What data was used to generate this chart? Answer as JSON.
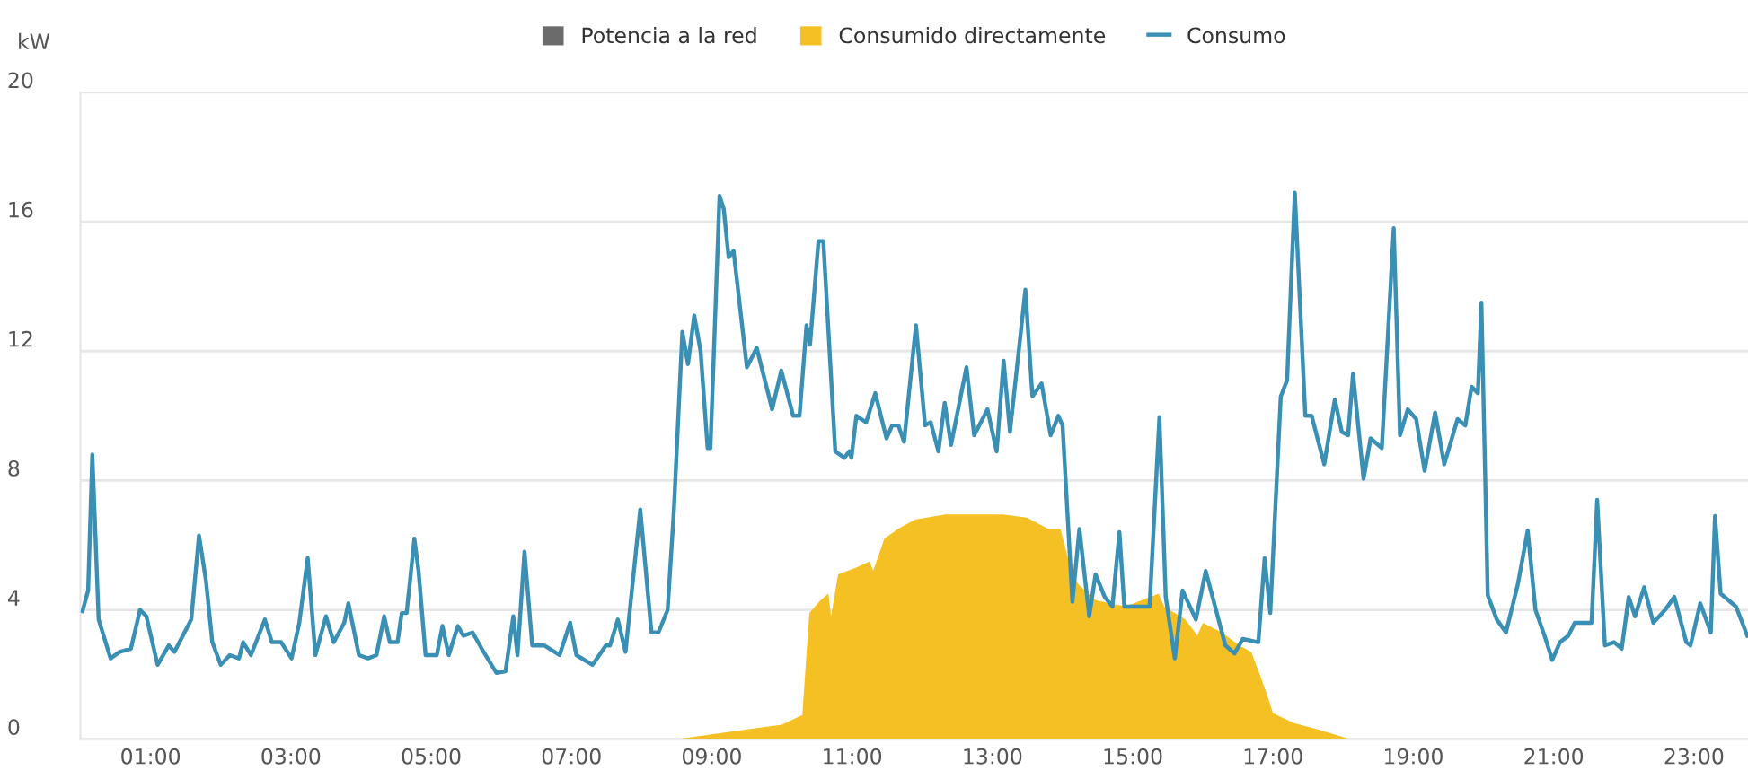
{
  "chart_data": {
    "type": "area",
    "ylabel": "kW",
    "series": [
      {
        "name": "Potencia a la red",
        "color": "#6b6b6b"
      },
      {
        "name": "Consumido directamente",
        "color": "#f5c023",
        "x": [
          8.5,
          9.0,
          9.5,
          10.0,
          10.29,
          10.39,
          10.55,
          10.66,
          10.7,
          10.8,
          11.05,
          11.25,
          11.3,
          11.46,
          11.65,
          11.82,
          11.91,
          12.33,
          12.76,
          13.15,
          13.49,
          13.8,
          13.97,
          14.1,
          14.22,
          14.47,
          14.9,
          15.37,
          15.45,
          15.75,
          15.92,
          16.0,
          16.27,
          16.52,
          16.69,
          16.82,
          16.91,
          17.0,
          17.3,
          17.64,
          18.1
        ],
        "values": [
          0,
          0.15,
          0.3,
          0.45,
          0.75,
          3.9,
          4.3,
          4.5,
          3.8,
          5.1,
          5.3,
          5.5,
          5.2,
          6.2,
          6.5,
          6.7,
          6.8,
          6.95,
          6.95,
          6.95,
          6.85,
          6.5,
          6.5,
          5.4,
          4.8,
          4.3,
          4.1,
          4.5,
          4.1,
          3.7,
          3.2,
          3.6,
          3.3,
          2.9,
          2.7,
          1.95,
          1.4,
          0.8,
          0.5,
          0.3,
          0
        ]
      },
      {
        "name": "Consumo",
        "type": "line",
        "color": "#3a8fb5",
        "x": [
          0.03,
          0.11,
          0.17,
          0.26,
          0.43,
          0.56,
          0.72,
          0.85,
          0.94,
          1.1,
          1.26,
          1.34,
          1.58,
          1.69,
          1.79,
          1.88,
          2.0,
          2.13,
          2.26,
          2.32,
          2.43,
          2.63,
          2.73,
          2.86,
          3.01,
          3.12,
          3.24,
          3.35,
          3.5,
          3.61,
          3.76,
          3.82,
          3.97,
          4.1,
          4.22,
          4.33,
          4.41,
          4.52,
          4.58,
          4.65,
          4.76,
          4.82,
          4.92,
          5.08,
          5.16,
          5.25,
          5.38,
          5.46,
          5.59,
          5.72,
          5.93,
          6.06,
          6.17,
          6.23,
          6.33,
          6.44,
          6.61,
          6.83,
          6.98,
          7.07,
          7.3,
          7.49,
          7.55,
          7.66,
          7.77,
          7.98,
          8.14,
          8.24,
          8.37,
          8.46,
          8.58,
          8.66,
          8.75,
          8.84,
          8.94,
          8.98,
          9.11,
          9.17,
          9.24,
          9.31,
          9.5,
          9.64,
          9.86,
          9.99,
          10.16,
          10.25,
          10.35,
          10.4,
          10.52,
          10.59,
          10.76,
          10.89,
          10.96,
          10.99,
          11.06,
          11.2,
          11.33,
          11.49,
          11.57,
          11.66,
          11.74,
          11.91,
          12.04,
          12.12,
          12.23,
          12.32,
          12.41,
          12.63,
          12.74,
          12.93,
          13.06,
          13.16,
          13.25,
          13.47,
          13.57,
          13.7,
          13.83,
          13.94,
          14.0,
          14.14,
          14.24,
          14.38,
          14.47,
          14.6,
          14.71,
          14.81,
          14.88,
          15.24,
          15.38,
          15.47,
          15.6,
          15.71,
          15.9,
          16.04,
          16.32,
          16.45,
          16.57,
          16.79,
          16.88,
          16.96,
          17.11,
          17.2,
          17.31,
          17.46,
          17.55,
          17.73,
          17.88,
          17.98,
          18.07,
          18.14,
          18.29,
          18.39,
          18.55,
          18.72,
          18.81,
          18.92,
          19.04,
          19.16,
          19.31,
          19.44,
          19.63,
          19.74,
          19.83,
          19.92,
          19.97,
          20.06,
          20.19,
          20.32,
          20.49,
          20.63,
          20.74,
          20.87,
          20.98,
          21.09,
          21.21,
          21.3,
          21.54,
          21.62,
          21.73,
          21.86,
          21.97,
          22.07,
          22.16,
          22.29,
          22.42,
          22.59,
          22.72,
          22.89,
          22.95,
          23.09,
          23.24,
          23.3,
          23.38,
          23.6,
          23.76
        ],
        "values": [
          3.96,
          4.6,
          8.8,
          3.7,
          2.5,
          2.7,
          2.8,
          4.0,
          3.8,
          2.3,
          2.9,
          2.7,
          3.7,
          6.3,
          4.9,
          3.0,
          2.3,
          2.6,
          2.5,
          3.0,
          2.6,
          3.7,
          3.0,
          3.0,
          2.5,
          3.6,
          5.6,
          2.6,
          3.8,
          3.0,
          3.6,
          4.2,
          2.6,
          2.5,
          2.6,
          3.8,
          3.0,
          3.0,
          3.9,
          3.9,
          6.2,
          5.2,
          2.6,
          2.6,
          3.5,
          2.6,
          3.5,
          3.2,
          3.3,
          2.8,
          2.05,
          2.1,
          3.8,
          2.6,
          5.8,
          2.9,
          2.9,
          2.6,
          3.6,
          2.6,
          2.3,
          2.9,
          2.9,
          3.7,
          2.7,
          7.1,
          3.3,
          3.3,
          4.0,
          7.1,
          12.6,
          11.6,
          13.1,
          12.0,
          9.0,
          9.0,
          16.8,
          16.4,
          14.9,
          15.1,
          11.5,
          12.1,
          10.2,
          11.4,
          10.0,
          10.0,
          12.8,
          12.2,
          15.4,
          15.4,
          8.9,
          8.7,
          8.9,
          8.7,
          10.0,
          9.8,
          10.7,
          9.3,
          9.7,
          9.7,
          9.2,
          12.8,
          9.7,
          9.8,
          8.9,
          10.4,
          9.1,
          11.5,
          9.4,
          10.2,
          8.9,
          11.7,
          9.5,
          13.9,
          10.6,
          11.0,
          9.4,
          10.0,
          9.7,
          4.25,
          6.5,
          3.8,
          5.1,
          4.4,
          4.1,
          6.4,
          4.1,
          4.1,
          9.96,
          4.4,
          2.5,
          4.6,
          3.7,
          5.2,
          2.9,
          2.65,
          3.1,
          3.0,
          5.6,
          3.9,
          10.6,
          11.1,
          16.9,
          10.0,
          10.0,
          8.5,
          10.5,
          9.5,
          9.4,
          11.3,
          8.05,
          9.3,
          9.0,
          15.8,
          9.4,
          10.2,
          9.9,
          8.3,
          10.1,
          8.5,
          9.9,
          9.7,
          10.9,
          10.7,
          13.5,
          4.45,
          3.7,
          3.3,
          4.8,
          6.45,
          4.0,
          3.2,
          2.45,
          3.0,
          3.2,
          3.6,
          3.6,
          7.4,
          2.9,
          3.0,
          2.8,
          4.4,
          3.8,
          4.7,
          3.6,
          4.0,
          4.4,
          3.0,
          2.9,
          4.2,
          3.3,
          6.9,
          4.5,
          4.1,
          3.2
        ]
      }
    ],
    "xlim": [
      0,
      23.77
    ],
    "ylim": [
      0,
      20
    ],
    "xticks": [
      {
        "value": 1,
        "label": "01:00"
      },
      {
        "value": 3,
        "label": "03:00"
      },
      {
        "value": 5,
        "label": "05:00"
      },
      {
        "value": 7,
        "label": "07:00"
      },
      {
        "value": 9,
        "label": "09:00"
      },
      {
        "value": 11,
        "label": "11:00"
      },
      {
        "value": 13,
        "label": "13:00"
      },
      {
        "value": 15,
        "label": "15:00"
      },
      {
        "value": 17,
        "label": "17:00"
      },
      {
        "value": 19,
        "label": "19:00"
      },
      {
        "value": 21,
        "label": "21:00"
      },
      {
        "value": 23,
        "label": "23:00"
      }
    ],
    "yticks": [
      0,
      4,
      8,
      12,
      16,
      20
    ],
    "grid": "y",
    "legend": "top"
  }
}
